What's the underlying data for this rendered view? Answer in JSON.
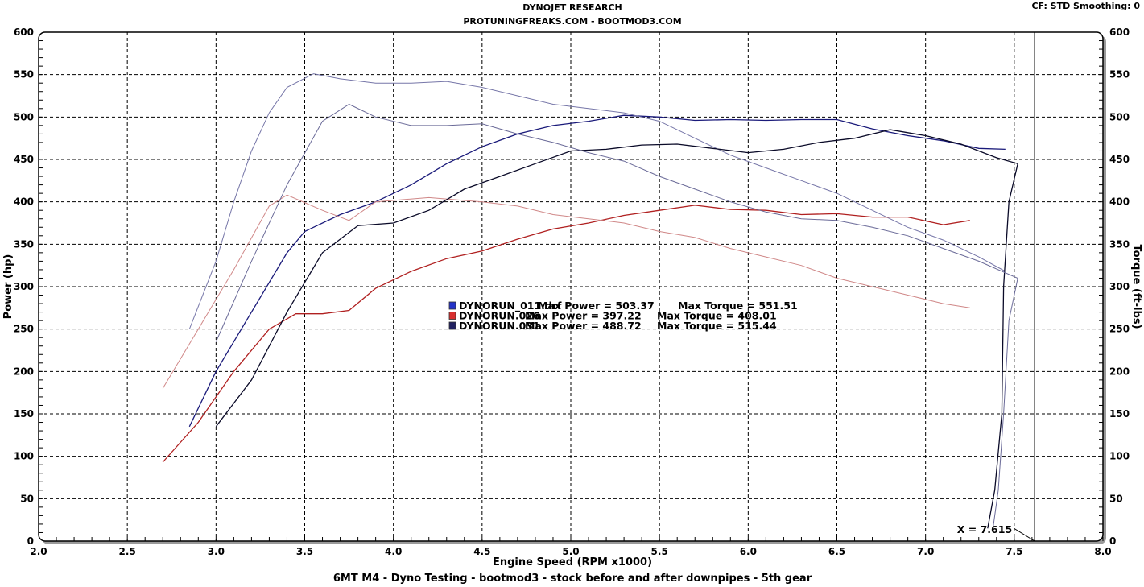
{
  "header": {
    "title": "DYNOJET RESEARCH",
    "subtitle": "PROTUNINGFREAKS.COM - BOOTMOD3.COM",
    "settings": "CF: STD  Smoothing: 0"
  },
  "footer": "6MT M4 - Dyno Testing - bootmod3 - stock before and after downpipes - 5th gear",
  "chart_data": {
    "type": "line",
    "xlabel": "Engine Speed (RPM x1000)",
    "ylabel": "Power (hp)",
    "y2label": "Torque (ft-lbs)",
    "xlim": [
      2.0,
      8.0
    ],
    "ylim": [
      0,
      600
    ],
    "y2lim": [
      0,
      600
    ],
    "x_ticks": [
      "2.0",
      "2.5",
      "3.0",
      "3.5",
      "4.0",
      "4.5",
      "5.0",
      "5.5",
      "6.0",
      "6.5",
      "7.0",
      "7.5",
      "8.0"
    ],
    "y_ticks": [
      "0",
      "50",
      "100",
      "150",
      "200",
      "250",
      "300",
      "350",
      "400",
      "450",
      "500",
      "550",
      "600"
    ],
    "grid": true,
    "cursor": {
      "x": 7.615,
      "label": "X = 7.615"
    },
    "legend": [
      {
        "name": "DYNORUN_011.drf",
        "max_power_label": "Max Power = 503.37",
        "max_torque_label": "Max Torque = 551.51",
        "color": "#2433c8"
      },
      {
        "name": "DYNORUN.026",
        "max_power_label": "Max Power = 397.22",
        "max_torque_label": "Max Torque = 408.01",
        "color": "#d83030"
      },
      {
        "name": "DYNORUN.031",
        "max_power_label": "Max Power = 488.72",
        "max_torque_label": "Max Torque = 515.44",
        "color": "#202060"
      }
    ],
    "series": [
      {
        "run": "DYNORUN_011.drf",
        "kind": "power",
        "color": "#1a1a7a",
        "points": [
          [
            2.85,
            135
          ],
          [
            3.0,
            200
          ],
          [
            3.2,
            270
          ],
          [
            3.4,
            340
          ],
          [
            3.5,
            365
          ],
          [
            3.7,
            385
          ],
          [
            3.9,
            400
          ],
          [
            4.1,
            420
          ],
          [
            4.3,
            445
          ],
          [
            4.5,
            465
          ],
          [
            4.7,
            480
          ],
          [
            4.9,
            490
          ],
          [
            5.1,
            495
          ],
          [
            5.3,
            502
          ],
          [
            5.5,
            500
          ],
          [
            5.7,
            496
          ],
          [
            5.9,
            497
          ],
          [
            6.1,
            496
          ],
          [
            6.3,
            497
          ],
          [
            6.5,
            497
          ],
          [
            6.7,
            486
          ],
          [
            6.9,
            478
          ],
          [
            7.1,
            472
          ],
          [
            7.3,
            463
          ],
          [
            7.45,
            462
          ]
        ]
      },
      {
        "run": "DYNORUN_011.drf",
        "kind": "torque",
        "color": "#7676a8",
        "points": [
          [
            2.85,
            250
          ],
          [
            3.0,
            330
          ],
          [
            3.1,
            400
          ],
          [
            3.2,
            460
          ],
          [
            3.3,
            505
          ],
          [
            3.4,
            535
          ],
          [
            3.55,
            551
          ],
          [
            3.7,
            545
          ],
          [
            3.9,
            540
          ],
          [
            4.1,
            540
          ],
          [
            4.3,
            542
          ],
          [
            4.5,
            535
          ],
          [
            4.7,
            525
          ],
          [
            4.9,
            515
          ],
          [
            5.1,
            510
          ],
          [
            5.3,
            505
          ],
          [
            5.5,
            495
          ],
          [
            5.7,
            475
          ],
          [
            5.9,
            455
          ],
          [
            6.1,
            440
          ],
          [
            6.3,
            425
          ],
          [
            6.5,
            410
          ],
          [
            6.7,
            390
          ],
          [
            6.9,
            370
          ],
          [
            7.1,
            355
          ],
          [
            7.3,
            335
          ],
          [
            7.45,
            318
          ]
        ]
      },
      {
        "run": "DYNORUN.026",
        "kind": "power",
        "color": "#b02020",
        "points": [
          [
            2.7,
            93
          ],
          [
            2.9,
            140
          ],
          [
            3.1,
            200
          ],
          [
            3.3,
            250
          ],
          [
            3.45,
            268
          ],
          [
            3.6,
            268
          ],
          [
            3.75,
            272
          ],
          [
            3.9,
            298
          ],
          [
            4.1,
            318
          ],
          [
            4.3,
            333
          ],
          [
            4.5,
            342
          ],
          [
            4.7,
            356
          ],
          [
            4.9,
            368
          ],
          [
            5.1,
            375
          ],
          [
            5.3,
            384
          ],
          [
            5.5,
            390
          ],
          [
            5.7,
            396
          ],
          [
            5.9,
            391
          ],
          [
            6.1,
            390
          ],
          [
            6.3,
            385
          ],
          [
            6.5,
            386
          ],
          [
            6.7,
            382
          ],
          [
            6.9,
            382
          ],
          [
            7.1,
            373
          ],
          [
            7.25,
            378
          ]
        ]
      },
      {
        "run": "DYNORUN.026",
        "kind": "torque",
        "color": "#d08888",
        "points": [
          [
            2.7,
            180
          ],
          [
            2.9,
            250
          ],
          [
            3.1,
            320
          ],
          [
            3.3,
            395
          ],
          [
            3.4,
            408
          ],
          [
            3.6,
            390
          ],
          [
            3.75,
            378
          ],
          [
            3.9,
            400
          ],
          [
            4.2,
            405
          ],
          [
            4.5,
            400
          ],
          [
            4.7,
            395
          ],
          [
            4.9,
            385
          ],
          [
            5.1,
            380
          ],
          [
            5.3,
            375
          ],
          [
            5.5,
            365
          ],
          [
            5.7,
            358
          ],
          [
            5.9,
            345
          ],
          [
            6.1,
            335
          ],
          [
            6.3,
            325
          ],
          [
            6.5,
            310
          ],
          [
            6.7,
            300
          ],
          [
            6.9,
            290
          ],
          [
            7.1,
            280
          ],
          [
            7.25,
            275
          ]
        ]
      },
      {
        "run": "DYNORUN.031",
        "kind": "power",
        "color": "#0a0a28",
        "points": [
          [
            3.0,
            135
          ],
          [
            3.2,
            190
          ],
          [
            3.4,
            270
          ],
          [
            3.6,
            340
          ],
          [
            3.8,
            372
          ],
          [
            4.0,
            375
          ],
          [
            4.2,
            390
          ],
          [
            4.4,
            415
          ],
          [
            4.6,
            430
          ],
          [
            4.8,
            445
          ],
          [
            5.0,
            460
          ],
          [
            5.2,
            462
          ],
          [
            5.4,
            467
          ],
          [
            5.6,
            468
          ],
          [
            5.8,
            463
          ],
          [
            6.0,
            458
          ],
          [
            6.2,
            462
          ],
          [
            6.4,
            470
          ],
          [
            6.6,
            475
          ],
          [
            6.8,
            485
          ],
          [
            7.0,
            478
          ],
          [
            7.2,
            468
          ],
          [
            7.4,
            452
          ],
          [
            7.52,
            445
          ],
          [
            7.47,
            400
          ],
          [
            7.44,
            300
          ],
          [
            7.43,
            150
          ],
          [
            7.39,
            60
          ],
          [
            7.35,
            15
          ]
        ]
      },
      {
        "run": "DYNORUN.031",
        "kind": "torque",
        "color": "#6a6a98",
        "points": [
          [
            3.0,
            235
          ],
          [
            3.2,
            330
          ],
          [
            3.4,
            420
          ],
          [
            3.6,
            495
          ],
          [
            3.75,
            515
          ],
          [
            3.9,
            500
          ],
          [
            4.1,
            490
          ],
          [
            4.3,
            490
          ],
          [
            4.5,
            492
          ],
          [
            4.7,
            480
          ],
          [
            4.9,
            470
          ],
          [
            5.1,
            458
          ],
          [
            5.3,
            448
          ],
          [
            5.5,
            430
          ],
          [
            5.7,
            415
          ],
          [
            5.9,
            400
          ],
          [
            6.1,
            388
          ],
          [
            6.3,
            380
          ],
          [
            6.5,
            378
          ],
          [
            6.7,
            370
          ],
          [
            6.9,
            360
          ],
          [
            7.1,
            345
          ],
          [
            7.3,
            330
          ],
          [
            7.52,
            310
          ],
          [
            7.47,
            260
          ],
          [
            7.44,
            150
          ],
          [
            7.41,
            60
          ],
          [
            7.38,
            15
          ]
        ]
      }
    ]
  }
}
